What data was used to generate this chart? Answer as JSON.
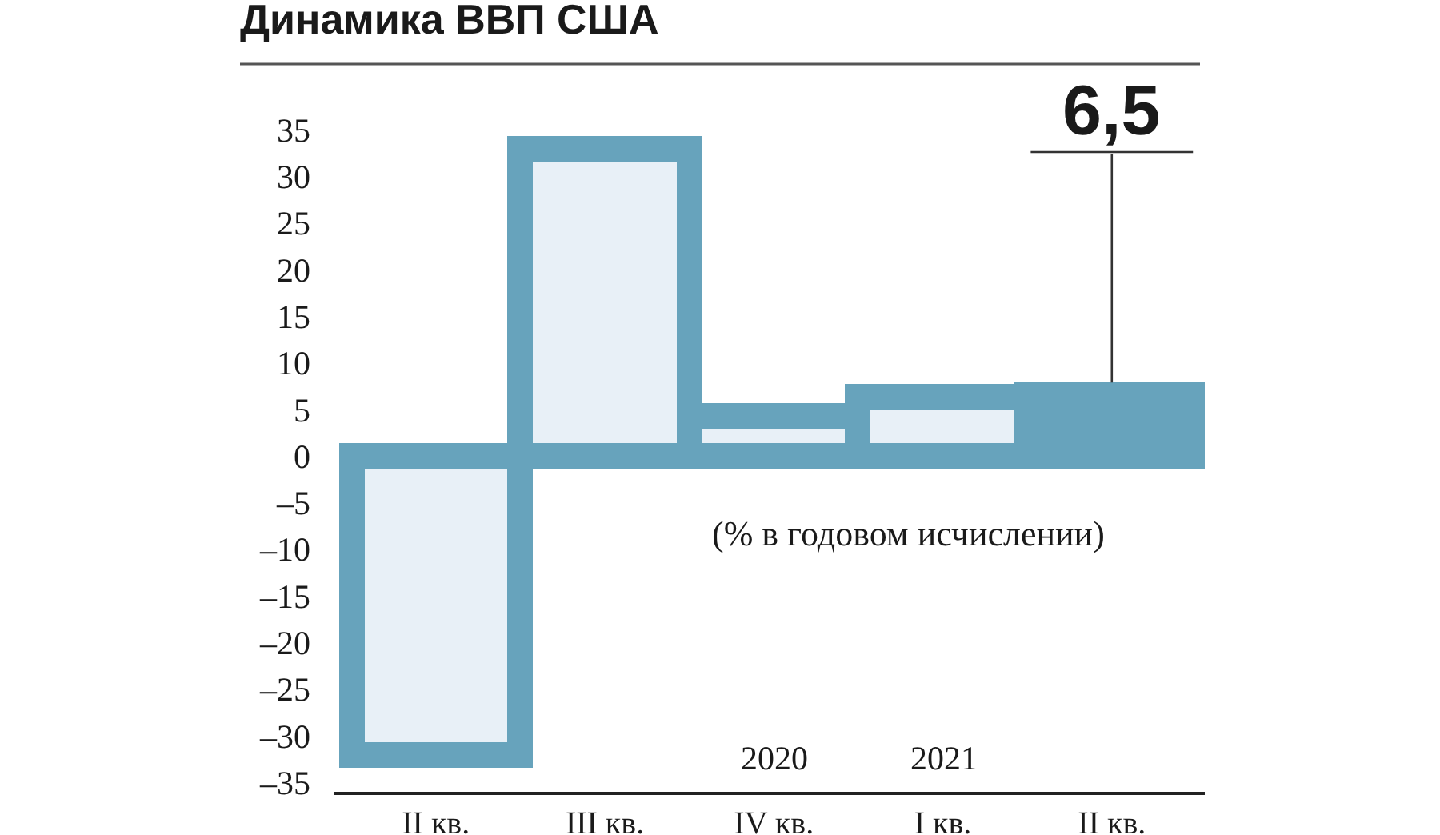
{
  "chart_data": {
    "type": "bar",
    "title": "Динамика ВВП США",
    "categories": [
      "II кв.",
      "III кв.",
      "IV кв.",
      "I кв.",
      "II кв."
    ],
    "values": [
      -32,
      33,
      4.3,
      6.3,
      6.5
    ],
    "color": "#67a3bc",
    "colors": [
      "#e8f0f7",
      "#e8f0f7",
      "#e8f0f7",
      "#e8f0f7",
      "#67a3bc"
    ],
    "value_labels": [
      null,
      null,
      null,
      null,
      "6,5"
    ],
    "ylim": [
      -36,
      35
    ],
    "yticks": [
      {
        "value": -35,
        "label": "–35"
      },
      {
        "value": -30,
        "label": "–30"
      },
      {
        "value": -25,
        "label": "–25"
      },
      {
        "value": -20,
        "label": "–20"
      },
      {
        "value": -15,
        "label": "–15"
      },
      {
        "value": -10,
        "label": "–10"
      },
      {
        "value": -5,
        "label": "–5"
      },
      0,
      5,
      10,
      15,
      20,
      25,
      30,
      35
    ],
    "annotations": [
      "(% в годовом исчислении)",
      "2020",
      "2021"
    ],
    "grid": false
  }
}
